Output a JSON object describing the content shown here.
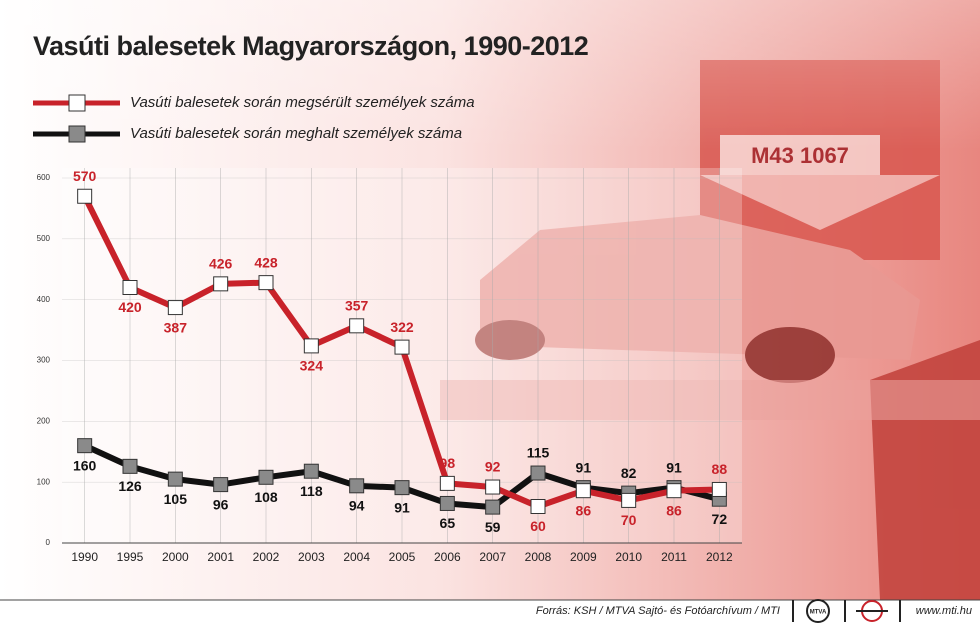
{
  "chart_data": {
    "type": "line",
    "title": "Vasúti balesetek Magyarországon, 1990-2012",
    "categories": [
      "1990",
      "1995",
      "2000",
      "2001",
      "2002",
      "2003",
      "2004",
      "2005",
      "2006",
      "2007",
      "2008",
      "2009",
      "2010",
      "2011",
      "2012"
    ],
    "series": [
      {
        "name": "Vasúti balesetek során megsérült személyek száma",
        "color": "#c8222a",
        "marker_color": "#ffffff",
        "values": [
          570,
          420,
          387,
          426,
          428,
          324,
          357,
          322,
          98,
          92,
          60,
          86,
          70,
          86,
          88
        ]
      },
      {
        "name": "Vasúti balesetek során meghalt személyek száma",
        "color": "#111111",
        "marker_color": "#8a8a8a",
        "values": [
          160,
          126,
          105,
          96,
          108,
          118,
          94,
          91,
          65,
          59,
          115,
          91,
          82,
          91,
          72
        ]
      }
    ],
    "ylim": [
      0,
      600
    ],
    "yticks": [
      0,
      100,
      200,
      300,
      400,
      500,
      600
    ],
    "grid": true,
    "source": "Forrás: KSH / MTVA Sajtó- és Fotóarchívum / MTI",
    "logo_text": "MTVA",
    "website": "www.mti.hu"
  }
}
